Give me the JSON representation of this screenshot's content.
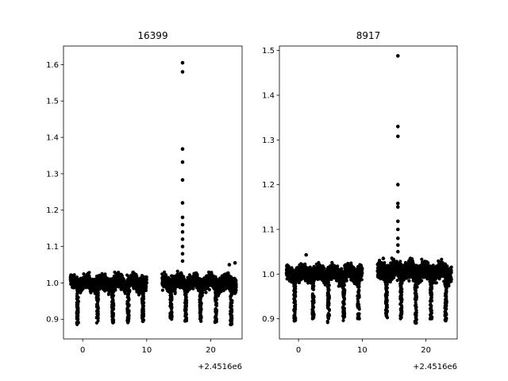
{
  "chart_data": [
    {
      "type": "scatter",
      "title": "16399",
      "xlabel": "",
      "ylabel": "",
      "x_offset_label": "+2.4516e6",
      "xlim": [
        -3.0,
        24.9
      ],
      "ylim": [
        0.846,
        1.651
      ],
      "xticks": [
        0,
        10,
        20
      ],
      "yticks": [
        0.9,
        1.0,
        1.1,
        1.2,
        1.3,
        1.4,
        1.5,
        1.6
      ],
      "xtick_labels": [
        "0",
        "10",
        "20"
      ],
      "ytick_labels": [
        "0.9",
        "1.0",
        "1.1",
        "1.2",
        "1.3",
        "1.4",
        "1.5",
        "1.6"
      ],
      "grid": false,
      "marker_color": "#000000",
      "segments": [
        {
          "x_start": -1.9,
          "x_end": 10.0,
          "center": 1.0,
          "spread": 0.03
        },
        {
          "x_start": 12.4,
          "x_end": 24.0,
          "center": 1.0,
          "spread": 0.03
        }
      ],
      "dips": [
        {
          "x": -0.8,
          "min": 0.885
        },
        {
          "x": 2.3,
          "min": 0.89
        },
        {
          "x": 4.7,
          "min": 0.885
        },
        {
          "x": 7.1,
          "min": 0.89
        },
        {
          "x": 9.4,
          "min": 0.89
        },
        {
          "x": 13.8,
          "min": 0.9
        },
        {
          "x": 16.1,
          "min": 0.895
        },
        {
          "x": 18.4,
          "min": 0.89
        },
        {
          "x": 20.8,
          "min": 0.89
        },
        {
          "x": 23.2,
          "min": 0.885
        }
      ],
      "flare_points": [
        {
          "x": 15.6,
          "y": 1.605
        },
        {
          "x": 15.6,
          "y": 1.58
        },
        {
          "x": 15.6,
          "y": 1.368
        },
        {
          "x": 15.6,
          "y": 1.332
        },
        {
          "x": 15.6,
          "y": 1.283
        },
        {
          "x": 15.6,
          "y": 1.22
        },
        {
          "x": 15.6,
          "y": 1.18
        },
        {
          "x": 15.6,
          "y": 1.16
        },
        {
          "x": 15.6,
          "y": 1.14
        },
        {
          "x": 15.6,
          "y": 1.12
        },
        {
          "x": 15.6,
          "y": 1.1
        },
        {
          "x": 15.6,
          "y": 1.08
        },
        {
          "x": 15.6,
          "y": 1.06
        },
        {
          "x": 23.8,
          "y": 1.055
        },
        {
          "x": 22.9,
          "y": 1.05
        }
      ]
    },
    {
      "type": "scatter",
      "title": "8917",
      "xlabel": "",
      "ylabel": "",
      "x_offset_label": "+2.4516e6",
      "xlim": [
        -3.0,
        24.9
      ],
      "ylim": [
        0.855,
        1.51
      ],
      "xticks": [
        0,
        10,
        20
      ],
      "yticks": [
        0.9,
        1.0,
        1.1,
        1.2,
        1.3,
        1.4,
        1.5
      ],
      "xtick_labels": [
        "0",
        "10",
        "20"
      ],
      "ytick_labels": [
        "0.9",
        "1.0",
        "1.1",
        "1.2",
        "1.3",
        "1.4",
        "1.5"
      ],
      "grid": false,
      "marker_color": "#000000",
      "segments": [
        {
          "x_start": -1.9,
          "x_end": 10.0,
          "center": 1.0,
          "spread": 0.025
        },
        {
          "x_start": 12.4,
          "x_end": 24.0,
          "center": 1.005,
          "spread": 0.03
        }
      ],
      "dips": [
        {
          "x": -0.6,
          "min": 0.895
        },
        {
          "x": 2.3,
          "min": 0.9
        },
        {
          "x": 4.7,
          "min": 0.89
        },
        {
          "x": 7.1,
          "min": 0.895
        },
        {
          "x": 9.4,
          "min": 0.9
        },
        {
          "x": 13.8,
          "min": 0.895
        },
        {
          "x": 16.1,
          "min": 0.9
        },
        {
          "x": 18.4,
          "min": 0.89
        },
        {
          "x": 20.8,
          "min": 0.9
        },
        {
          "x": 23.1,
          "min": 0.895
        }
      ],
      "flare_points": [
        {
          "x": 15.6,
          "y": 1.488
        },
        {
          "x": 15.6,
          "y": 1.33
        },
        {
          "x": 15.6,
          "y": 1.308
        },
        {
          "x": 15.6,
          "y": 1.2
        },
        {
          "x": 15.6,
          "y": 1.158
        },
        {
          "x": 15.6,
          "y": 1.15
        },
        {
          "x": 15.6,
          "y": 1.118
        },
        {
          "x": 15.6,
          "y": 1.1
        },
        {
          "x": 15.6,
          "y": 1.08
        },
        {
          "x": 15.6,
          "y": 1.065
        },
        {
          "x": 15.6,
          "y": 1.05
        },
        {
          "x": 13.3,
          "y": 1.035
        },
        {
          "x": 1.2,
          "y": 1.043
        }
      ]
    }
  ]
}
